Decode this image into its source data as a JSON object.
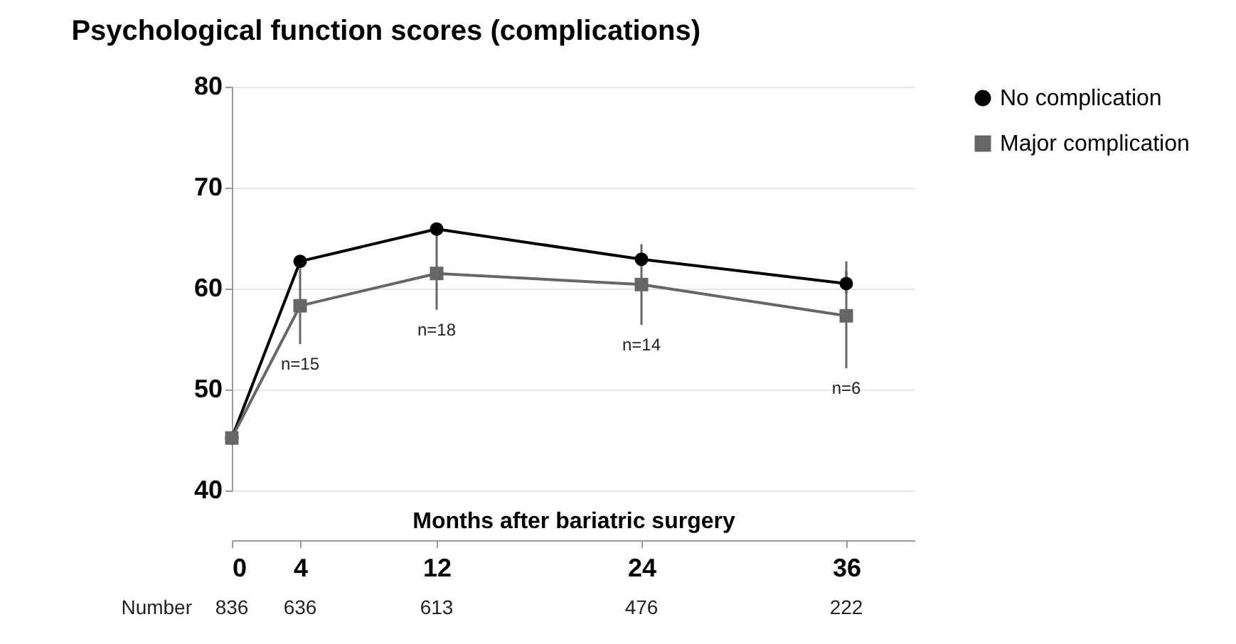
{
  "chart_data": {
    "type": "line",
    "title": "Psychological function scores (complications)",
    "xlabel": "Months after bariatric surgery",
    "x": [
      0,
      4,
      12,
      24,
      36
    ],
    "series": [
      {
        "name": "No complication",
        "color": "#000000",
        "marker": "circle",
        "values": [
          45.2,
          62.7,
          65.9,
          62.9,
          60.5
        ],
        "errors": [
          null,
          null,
          null,
          [
            62.3,
            63.5
          ],
          [
            59.5,
            61.7
          ]
        ]
      },
      {
        "name": "Major complication",
        "color": "#666666",
        "marker": "square",
        "values": [
          45.2,
          58.3,
          61.5,
          60.4,
          57.3
        ],
        "errors": [
          null,
          [
            54.5,
            62.0
          ],
          [
            57.9,
            65.4
          ],
          [
            56.4,
            64.4
          ],
          [
            52.1,
            62.7
          ]
        ]
      }
    ],
    "xlim": [
      0,
      40
    ],
    "xticks": [
      0,
      4,
      12,
      24,
      36
    ],
    "ylim": [
      40,
      80
    ],
    "yticks": [
      40,
      50,
      60,
      70,
      80
    ],
    "grid": "y",
    "legend": "right",
    "annotations": [
      "n=15",
      "n=18",
      "n=14",
      "n=6",
      "Number",
      "836",
      "636",
      "613",
      "476",
      "222"
    ]
  }
}
